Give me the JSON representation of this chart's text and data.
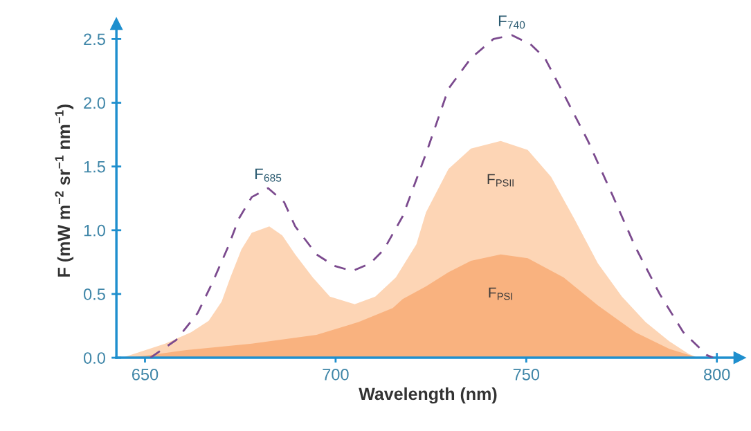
{
  "chart_data": {
    "type": "area",
    "xlabel": "Wavelength (nm)",
    "ylabel": "F (mW m$^{−2}$ sr$^{−1}$ nm$^{−1}$)",
    "xlim": [
      642.5,
      806
    ],
    "ylim": [
      0,
      2.62
    ],
    "xticks": [
      650,
      700,
      750,
      800
    ],
    "yticks": [
      {
        "value": 0,
        "label": "0.0"
      },
      {
        "value": 0.5,
        "label": "0.5"
      },
      {
        "value": 1,
        "label": "1.0"
      },
      {
        "value": 1.5,
        "label": "1.5"
      },
      {
        "value": 2,
        "label": "2.0"
      },
      {
        "value": 2.5,
        "label": "2.5"
      }
    ],
    "grid": false,
    "legend": false,
    "series": [
      {
        "name": "F$_{PSII}$",
        "color": "#fdd5b5",
        "x": [
          644,
          655.3,
          662.1,
          666.7,
          670.1,
          672.4,
          675.3,
          678,
          682.6,
          686,
          689.4,
          694,
          698.5,
          705,
          710.4,
          715.8,
          721.2,
          723.7,
          729.6,
          735.5,
          743.3,
          750.4,
          756.5,
          762.6,
          768.8,
          775.1,
          781.3,
          787.5,
          792.6,
          795
        ],
        "values": [
          0,
          0.11,
          0.2,
          0.29,
          0.44,
          0.63,
          0.85,
          0.98,
          1.03,
          0.96,
          0.81,
          0.63,
          0.48,
          0.42,
          0.48,
          0.63,
          0.89,
          1.14,
          1.48,
          1.64,
          1.7,
          1.63,
          1.42,
          1.09,
          0.74,
          0.48,
          0.28,
          0.13,
          0.03,
          0
        ]
      },
      {
        "name": "F$_{PSI}$",
        "color": "#f9b27f",
        "x": [
          646,
          660.9,
          678,
          695,
          706,
          715,
          717.6,
          723.7,
          729.6,
          735.5,
          743.3,
          750.4,
          759.8,
          768.8,
          778.6,
          787.5,
          795
        ],
        "values": [
          0,
          0.06,
          0.11,
          0.18,
          0.28,
          0.39,
          0.46,
          0.56,
          0.67,
          0.76,
          0.81,
          0.78,
          0.63,
          0.41,
          0.2,
          0.07,
          0
        ]
      },
      {
        "type": "line",
        "color": "#7b4a8e",
        "line_style": "dashed",
        "x": [
          651.4,
          658.2,
          663.8,
          667.7,
          671.8,
          674.6,
          678,
          682.3,
          686.5,
          689.4,
          695,
          699.7,
          704.4,
          709.1,
          712.7,
          717.6,
          723.7,
          729.6,
          735.5,
          741.4,
          746.2,
          751.1,
          754.9,
          759.8,
          766.2,
          772.4,
          778.6,
          785,
          791.2,
          797.4,
          799
        ],
        "values": [
          0,
          0.14,
          0.35,
          0.59,
          0.87,
          1.09,
          1.26,
          1.33,
          1.22,
          1.03,
          0.81,
          0.72,
          0.68,
          0.74,
          0.85,
          1.11,
          1.6,
          2.11,
          2.35,
          2.5,
          2.53,
          2.46,
          2.35,
          2.07,
          1.7,
          1.29,
          0.87,
          0.5,
          0.2,
          0.02,
          0
        ]
      }
    ],
    "annotations": [
      {
        "text": "F$_{685}$",
        "x": 682.3,
        "y": 1.33
      },
      {
        "text": "F$_{740}$",
        "x": 746.2,
        "y": 2.53
      }
    ]
  }
}
